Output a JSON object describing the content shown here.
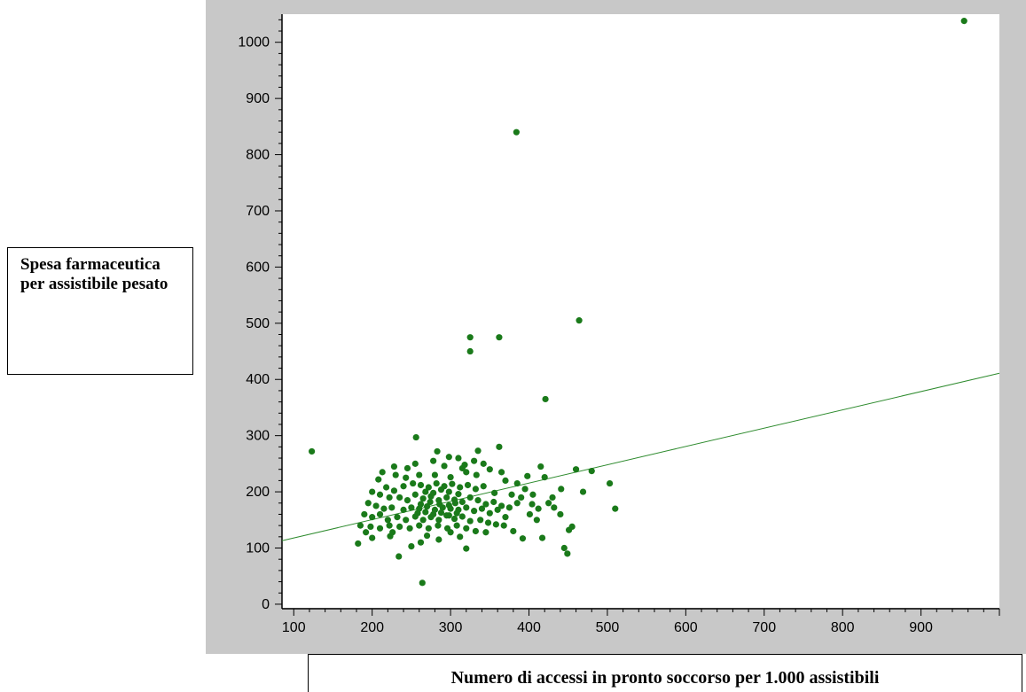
{
  "chart_data": {
    "type": "scatter",
    "xlabel": "Numero di accessi in pronto soccorso per 1.000 assistibili",
    "ylabel": "Spesa farmaceutica per assistibile pesato",
    "xlim": [
      85,
      1000
    ],
    "ylim": [
      -8,
      1050
    ],
    "x_ticks": [
      100,
      200,
      300,
      400,
      500,
      600,
      700,
      800,
      900
    ],
    "y_ticks": [
      0,
      100,
      200,
      300,
      400,
      500,
      600,
      700,
      800,
      900,
      1000
    ],
    "x_tick_labels": [
      "100",
      "200",
      "300",
      "400",
      "500",
      "600",
      "700",
      "800",
      "900"
    ],
    "y_tick_labels": [
      "0",
      "100",
      "200",
      "300",
      "400",
      "500",
      "600",
      "700",
      "800",
      "900",
      "1000"
    ],
    "grid": false,
    "colors": {
      "point": "#1a7a1a",
      "trend": "#2e8b2e",
      "frame": "#c8c8c8"
    },
    "trend_line": {
      "x": [
        85,
        1000
      ],
      "y": [
        113,
        411
      ]
    },
    "series": [
      {
        "points": [
          [
            955,
            1038
          ],
          [
            384,
            840
          ],
          [
            464,
            505
          ],
          [
            325,
            475
          ],
          [
            362,
            475
          ],
          [
            325,
            450
          ],
          [
            421,
            365
          ],
          [
            123,
            272
          ],
          [
            256,
            297
          ],
          [
            362,
            280
          ],
          [
            335,
            273
          ],
          [
            283,
            272
          ],
          [
            415,
            245
          ],
          [
            460,
            240
          ],
          [
            480,
            237
          ],
          [
            503,
            215
          ],
          [
            510,
            170
          ],
          [
            469,
            200
          ],
          [
            441,
            205
          ],
          [
            430,
            190
          ],
          [
            425,
            180
          ],
          [
            401,
            160
          ],
          [
            410,
            150
          ],
          [
            417,
            118
          ],
          [
            445,
            100
          ],
          [
            449,
            90
          ],
          [
            392,
            117
          ],
          [
            380,
            130
          ],
          [
            455,
            138
          ],
          [
            451,
            132
          ],
          [
            264,
            38
          ],
          [
            234,
            85
          ],
          [
            250,
            103
          ],
          [
            182,
            108
          ],
          [
            200,
            118
          ],
          [
            223,
            121
          ],
          [
            320,
            99
          ],
          [
            213,
            235
          ],
          [
            230,
            230
          ],
          [
            243,
            225
          ],
          [
            260,
            230
          ],
          [
            280,
            230
          ],
          [
            300,
            226
          ],
          [
            320,
            235
          ],
          [
            333,
            230
          ],
          [
            350,
            240
          ],
          [
            365,
            235
          ],
          [
            370,
            220
          ],
          [
            385,
            215
          ],
          [
            395,
            205
          ],
          [
            405,
            195
          ],
          [
            200,
            200
          ],
          [
            210,
            195
          ],
          [
            222,
            190
          ],
          [
            235,
            190
          ],
          [
            245,
            185
          ],
          [
            255,
            195
          ],
          [
            265,
            188
          ],
          [
            275,
            192
          ],
          [
            285,
            185
          ],
          [
            295,
            190
          ],
          [
            305,
            186
          ],
          [
            315,
            182
          ],
          [
            325,
            190
          ],
          [
            335,
            185
          ],
          [
            345,
            178
          ],
          [
            355,
            182
          ],
          [
            365,
            175
          ],
          [
            375,
            172
          ],
          [
            385,
            180
          ],
          [
            195,
            180
          ],
          [
            205,
            175
          ],
          [
            215,
            170
          ],
          [
            225,
            172
          ],
          [
            240,
            168
          ],
          [
            250,
            172
          ],
          [
            260,
            170
          ],
          [
            270,
            174
          ],
          [
            280,
            168
          ],
          [
            290,
            172
          ],
          [
            300,
            170
          ],
          [
            310,
            168
          ],
          [
            320,
            172
          ],
          [
            330,
            166
          ],
          [
            340,
            170
          ],
          [
            350,
            162
          ],
          [
            360,
            168
          ],
          [
            370,
            155
          ],
          [
            190,
            160
          ],
          [
            200,
            155
          ],
          [
            210,
            160
          ],
          [
            220,
            150
          ],
          [
            232,
            155
          ],
          [
            243,
            150
          ],
          [
            255,
            156
          ],
          [
            265,
            150
          ],
          [
            275,
            155
          ],
          [
            285,
            150
          ],
          [
            295,
            158
          ],
          [
            305,
            152
          ],
          [
            315,
            156
          ],
          [
            325,
            148
          ],
          [
            338,
            150
          ],
          [
            348,
            145
          ],
          [
            358,
            142
          ],
          [
            368,
            140
          ],
          [
            185,
            140
          ],
          [
            198,
            138
          ],
          [
            210,
            135
          ],
          [
            222,
            140
          ],
          [
            235,
            138
          ],
          [
            248,
            135
          ],
          [
            260,
            140
          ],
          [
            272,
            135
          ],
          [
            284,
            140
          ],
          [
            296,
            135
          ],
          [
            308,
            140
          ],
          [
            320,
            135
          ],
          [
            332,
            130
          ],
          [
            345,
            128
          ],
          [
            240,
            210
          ],
          [
            252,
            215
          ],
          [
            262,
            212
          ],
          [
            272,
            208
          ],
          [
            282,
            215
          ],
          [
            292,
            210
          ],
          [
            302,
            214
          ],
          [
            312,
            208
          ],
          [
            322,
            212
          ],
          [
            332,
            205
          ],
          [
            342,
            210
          ],
          [
            268,
            200
          ],
          [
            278,
            198
          ],
          [
            288,
            204
          ],
          [
            298,
            200
          ],
          [
            310,
            196
          ],
          [
            262,
            178
          ],
          [
            274,
            182
          ],
          [
            286,
            178
          ],
          [
            298,
            176
          ],
          [
            306,
            180
          ],
          [
            258,
            162
          ],
          [
            268,
            164
          ],
          [
            278,
            160
          ],
          [
            288,
            163
          ],
          [
            298,
            158
          ],
          [
            308,
            162
          ],
          [
            218,
            208
          ],
          [
            228,
            202
          ],
          [
            208,
            222
          ],
          [
            192,
            128
          ],
          [
            226,
            128
          ],
          [
            356,
            198
          ],
          [
            378,
            195
          ],
          [
            390,
            190
          ],
          [
            404,
            178
          ],
          [
            412,
            170
          ],
          [
            398,
            228
          ],
          [
            420,
            226
          ],
          [
            432,
            172
          ],
          [
            440,
            160
          ],
          [
            228,
            245
          ],
          [
            245,
            242
          ],
          [
            292,
            246
          ],
          [
            318,
            248
          ],
          [
            342,
            250
          ],
          [
            298,
            262
          ],
          [
            315,
            242
          ],
          [
            270,
            122
          ],
          [
            285,
            115
          ],
          [
            300,
            128
          ],
          [
            312,
            120
          ],
          [
            262,
            110
          ],
          [
            278,
            255
          ],
          [
            255,
            250
          ],
          [
            330,
            255
          ],
          [
            310,
            260
          ]
        ]
      }
    ]
  }
}
